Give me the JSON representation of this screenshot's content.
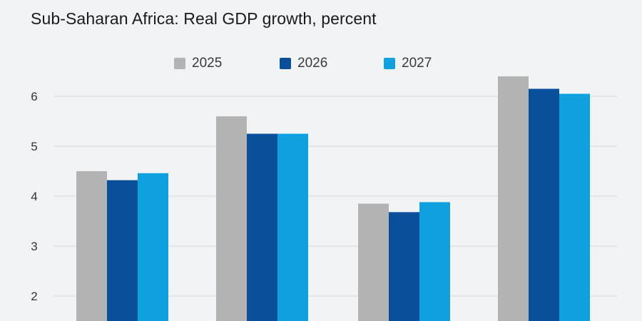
{
  "chart_data": {
    "type": "bar",
    "title": "Sub-Saharan Africa: Real GDP growth, percent",
    "xlabel": "",
    "ylabel": "",
    "categories": [
      "",
      "",
      "",
      ""
    ],
    "series": [
      {
        "name": "2025",
        "color": "#b3b3b3",
        "values": [
          4.5,
          5.6,
          3.85,
          6.4
        ]
      },
      {
        "name": "2026",
        "color": "#0a4f9a",
        "values": [
          4.32,
          5.25,
          3.68,
          6.15
        ]
      },
      {
        "name": "2027",
        "color": "#0fa0df",
        "values": [
          4.46,
          5.25,
          3.88,
          6.05
        ]
      }
    ],
    "yticks": [
      "2",
      "3",
      "4",
      "5",
      "6"
    ],
    "ytick_values": [
      2,
      3,
      4,
      5,
      6
    ],
    "ylim": [
      1.5,
      6.5
    ],
    "grid": true,
    "legend_position": "top-center"
  },
  "colors": {
    "background": "#f2f3f5",
    "gridline": "#d9dadd"
  }
}
